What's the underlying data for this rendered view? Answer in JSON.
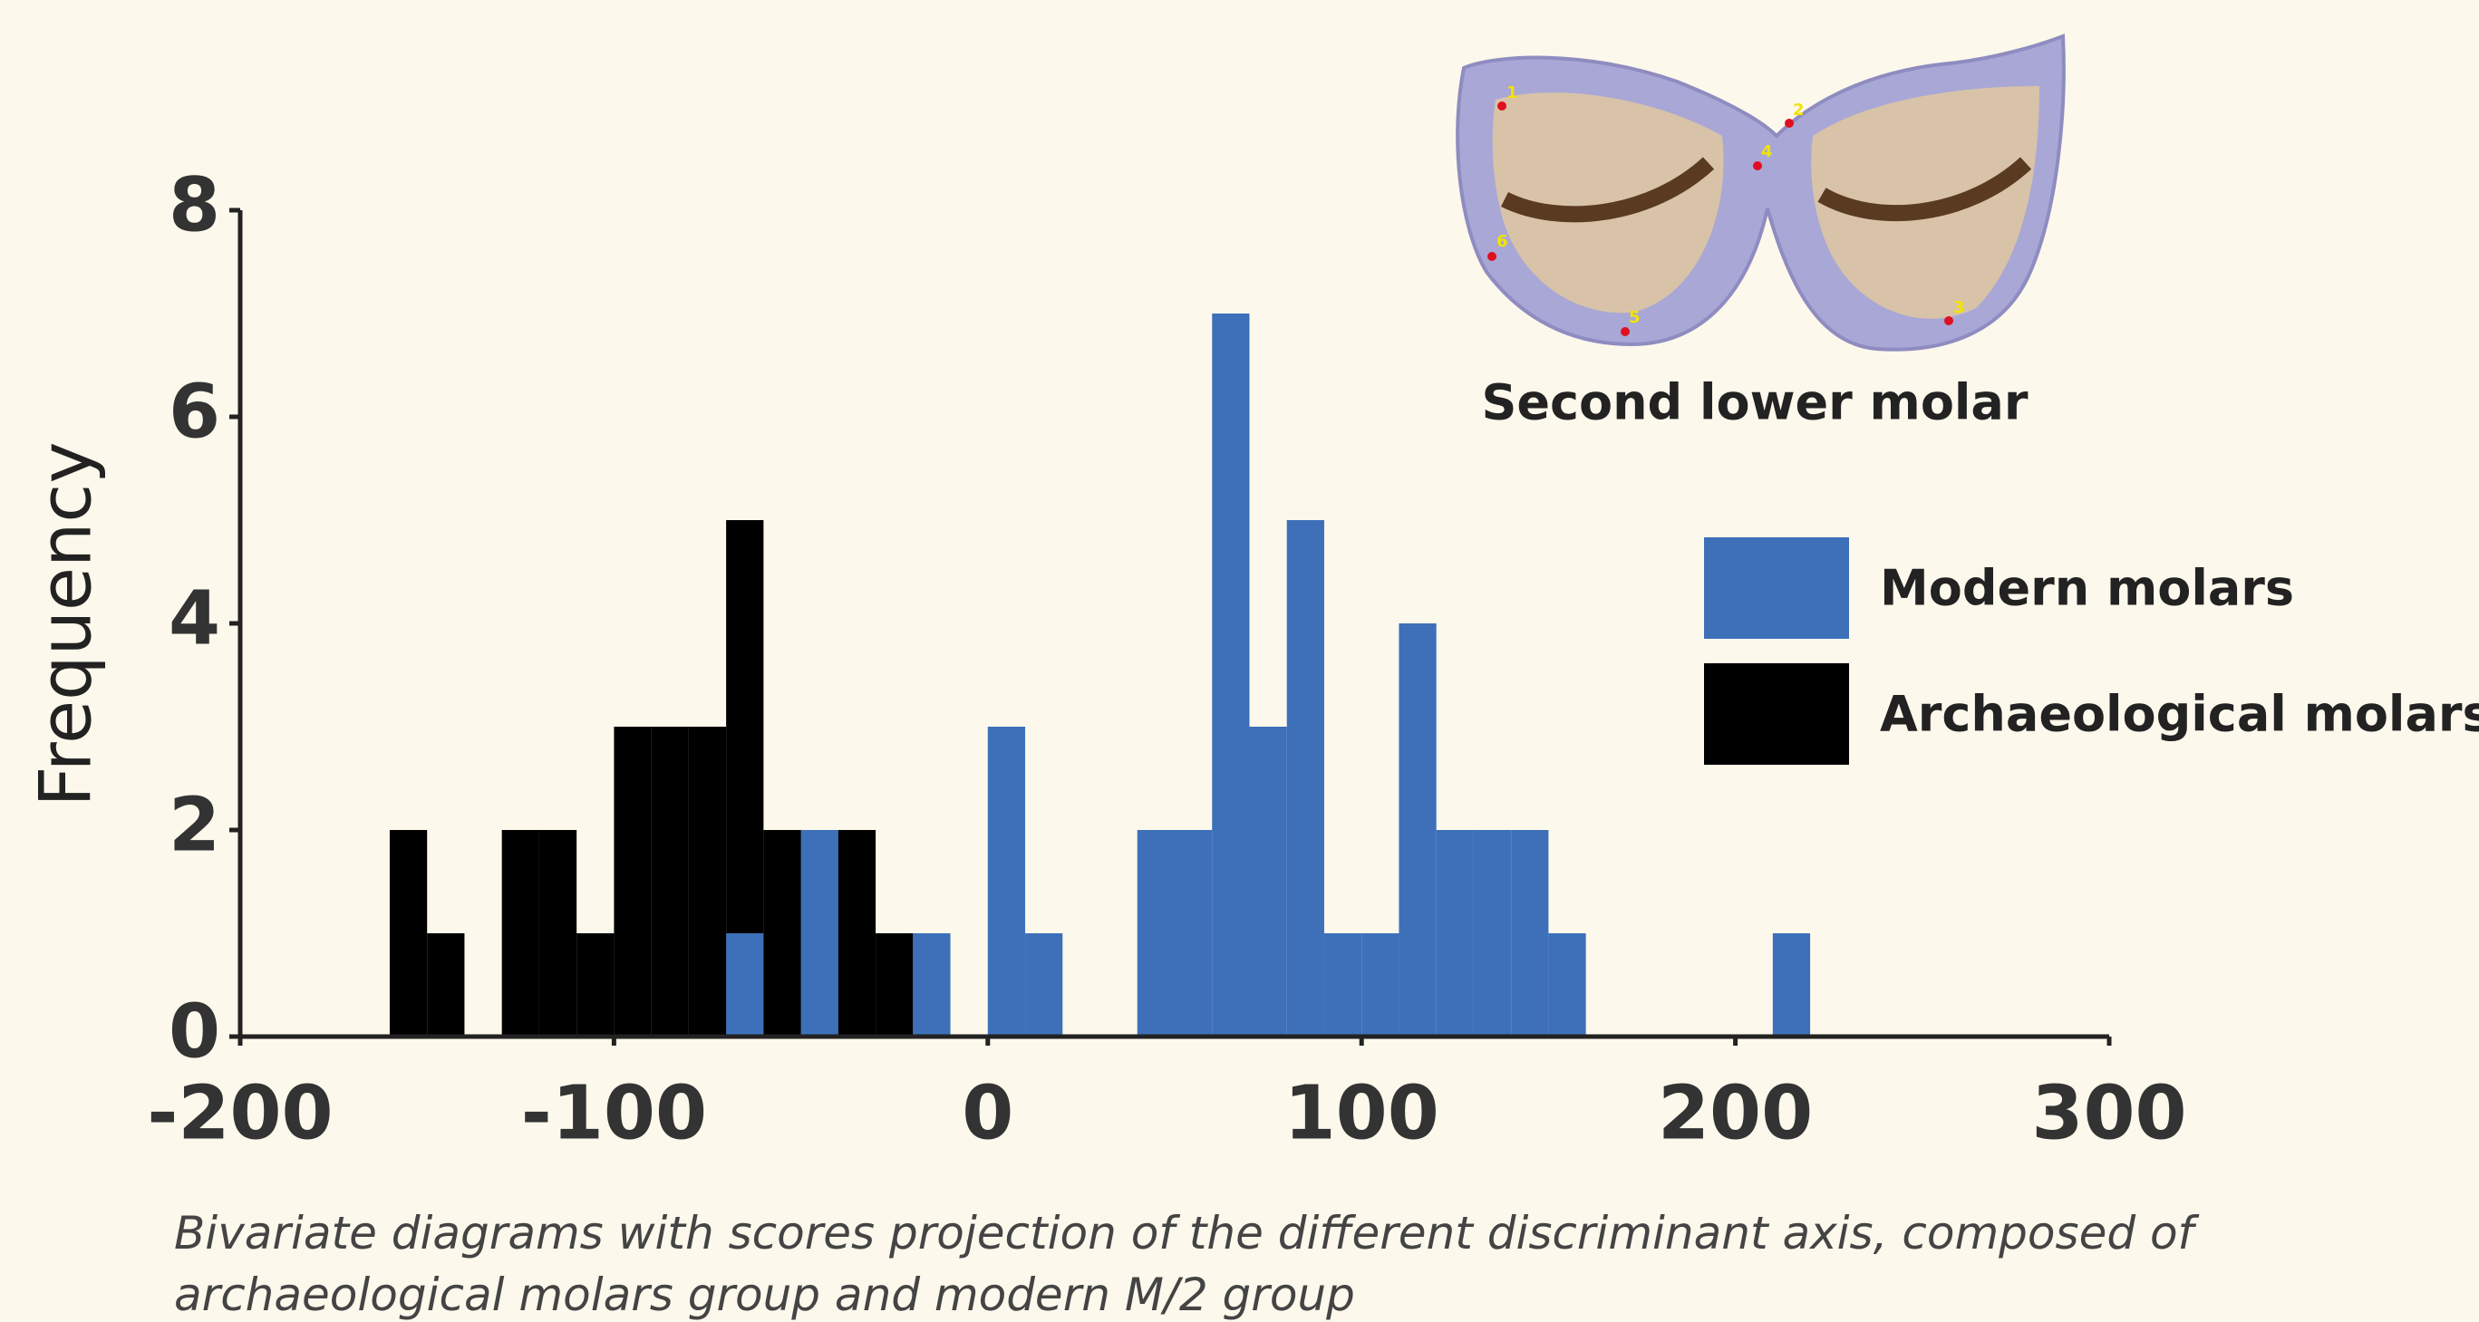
{
  "chart_data": {
    "type": "histogram",
    "ylabel": "Frequency",
    "xlim": [
      -200,
      300
    ],
    "xticks": [
      -200,
      -100,
      0,
      100,
      200,
      300
    ],
    "ylim": [
      0,
      8
    ],
    "yticks": [
      0,
      2,
      4,
      6,
      8
    ],
    "legend": "right",
    "series": [
      {
        "name": "Archaeological molars",
        "color": "#000000",
        "bins": [
          -160,
          -150,
          -140,
          -130,
          -120,
          -110,
          -100,
          -90,
          -80,
          -70,
          -60,
          -50,
          -40,
          -30,
          -20
        ],
        "values": [
          2,
          1,
          0,
          2,
          2,
          1,
          3,
          3,
          3,
          5,
          2,
          2,
          2,
          1
        ]
      },
      {
        "name": "Modern molars",
        "color": "#3d70b8",
        "bins": [
          -70,
          -60,
          -50,
          -40,
          -30,
          -20,
          -10,
          0,
          10,
          20,
          30,
          40,
          50,
          60,
          70,
          80,
          90,
          100,
          110,
          120,
          130,
          140,
          150,
          160,
          170,
          180,
          190,
          200,
          210,
          220
        ],
        "values": [
          1,
          0,
          2,
          0,
          0,
          1,
          0,
          3,
          1,
          0,
          0,
          2,
          2,
          7,
          3,
          5,
          1,
          1,
          4,
          2,
          2,
          2,
          1,
          0,
          0,
          0,
          0,
          0,
          1
        ]
      }
    ],
    "inset": {
      "title": "Second lower molar",
      "landmarks": [
        "1",
        "2",
        "3",
        "4",
        "5",
        "6"
      ]
    },
    "caption": [
      "Bivariate diagrams with scores projection of the different discriminant axis, composed of",
      "archaeological molars group and modern M/2 group"
    ]
  }
}
